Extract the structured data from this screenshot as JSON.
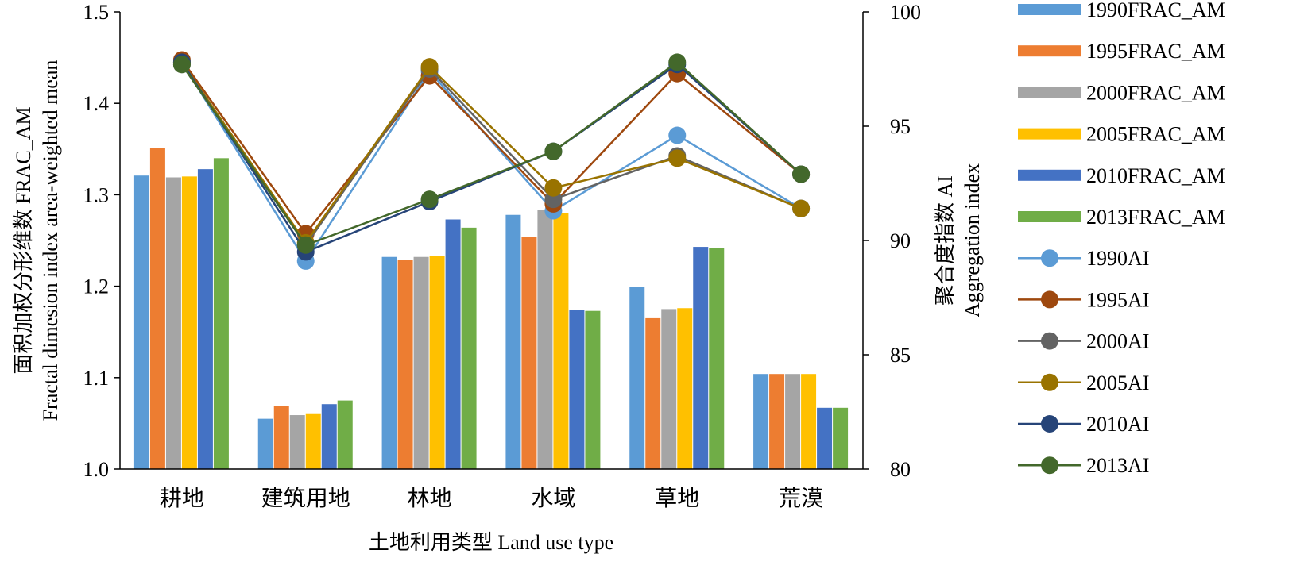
{
  "chart_data": {
    "type": "bar",
    "categories": [
      "耕地",
      "建筑用地",
      "林地",
      "水域",
      "草地",
      "荒漠"
    ],
    "xlabel": "土地利用类型 Land use type",
    "ylabel_left": [
      "面积加权分形维数 FRAC_AM",
      "Fractal dimesion index area-weighted mean"
    ],
    "ylabel_right": [
      "聚合度指数 AI",
      "Aggregation index"
    ],
    "ylim_left": [
      1.0,
      1.5
    ],
    "yticks_left": [
      "1.0",
      "1.1",
      "1.2",
      "1.3",
      "1.4",
      "1.5"
    ],
    "ylim_right": [
      80,
      100
    ],
    "yticks_right": [
      "80",
      "85",
      "90",
      "95",
      "100"
    ],
    "grid": false,
    "legend_position": "right",
    "bar_series": [
      {
        "name": "1990FRAC_AM",
        "color": "#5B9BD5",
        "values": [
          1.321,
          1.055,
          1.232,
          1.278,
          1.199,
          1.104
        ]
      },
      {
        "name": "1995FRAC_AM",
        "color": "#ED7D31",
        "values": [
          1.351,
          1.069,
          1.229,
          1.254,
          1.165,
          1.104
        ]
      },
      {
        "name": "2000FRAC_AM",
        "color": "#A5A5A5",
        "values": [
          1.319,
          1.059,
          1.232,
          1.283,
          1.175,
          1.104
        ]
      },
      {
        "name": "2005FRAC_AM",
        "color": "#FFC000",
        "values": [
          1.32,
          1.061,
          1.233,
          1.28,
          1.176,
          1.104
        ]
      },
      {
        "name": "2010FRAC_AM",
        "color": "#4472C4",
        "values": [
          1.328,
          1.071,
          1.273,
          1.174,
          1.243,
          1.067
        ]
      },
      {
        "name": "2013FRAC_AM",
        "color": "#70AD47",
        "values": [
          1.34,
          1.075,
          1.264,
          1.173,
          1.242,
          1.067
        ]
      }
    ],
    "line_series": [
      {
        "name": "1990AI",
        "color": "#5B9BD5",
        "values": [
          97.8,
          89.1,
          97.4,
          91.3,
          94.6,
          91.4
        ]
      },
      {
        "name": "1995AI",
        "color": "#9E480E",
        "values": [
          97.9,
          90.3,
          97.2,
          91.6,
          97.3,
          92.9
        ]
      },
      {
        "name": "2000AI",
        "color": "#636363",
        "values": [
          97.7,
          89.8,
          97.5,
          91.8,
          93.7,
          91.4
        ]
      },
      {
        "name": "2005AI",
        "color": "#997300",
        "values": [
          97.8,
          89.9,
          97.6,
          92.3,
          93.6,
          91.4
        ]
      },
      {
        "name": "2010AI",
        "color": "#264478",
        "values": [
          97.8,
          89.5,
          91.7,
          93.9,
          97.7,
          92.9
        ]
      },
      {
        "name": "2013AI",
        "color": "#43682B",
        "values": [
          97.7,
          89.8,
          91.8,
          93.9,
          97.8,
          92.9
        ]
      }
    ]
  }
}
